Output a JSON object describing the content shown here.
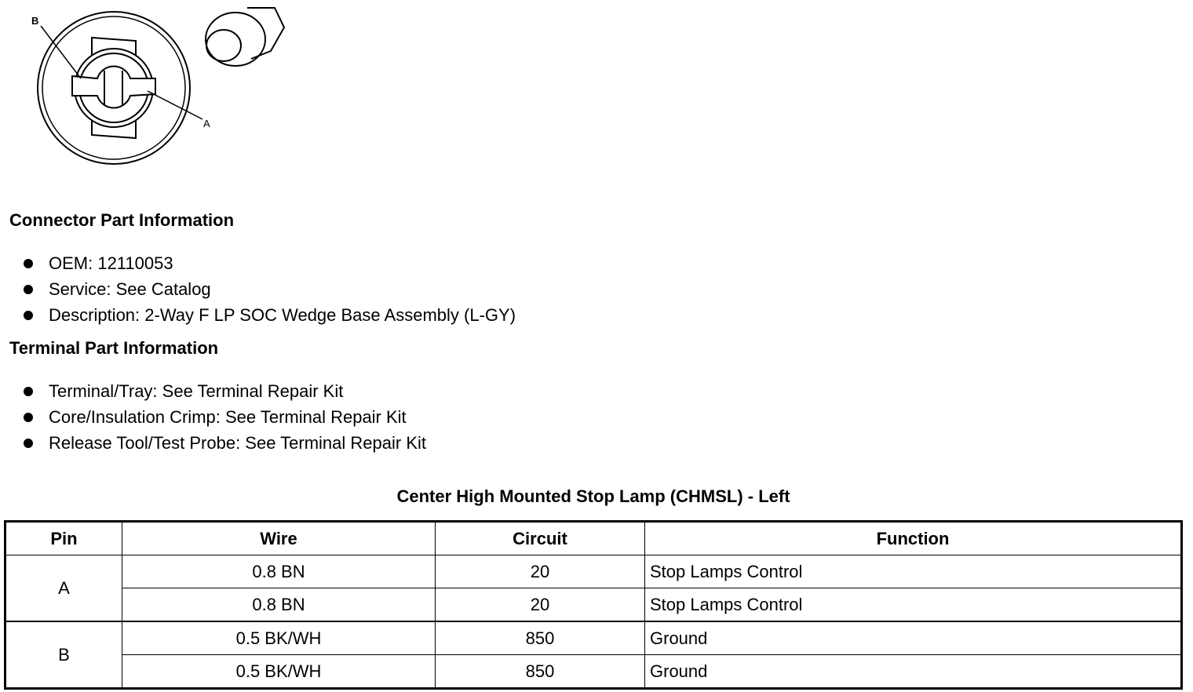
{
  "diagram": {
    "labels": [
      "A",
      "B"
    ]
  },
  "connector": {
    "heading": "Connector Part Information",
    "items": [
      "OEM: 12110053",
      "Service: See Catalog",
      "Description: 2-Way F LP SOC Wedge Base Assembly (L-GY)"
    ]
  },
  "terminal": {
    "heading": "Terminal Part Information",
    "items": [
      "Terminal/Tray: See Terminal Repair Kit",
      "Core/Insulation Crimp: See Terminal Repair Kit",
      "Release Tool/Test Probe: See Terminal Repair Kit"
    ]
  },
  "table": {
    "title": "Center High Mounted Stop Lamp (CHMSL) - Left",
    "headers": [
      "Pin",
      "Wire",
      "Circuit",
      "Function"
    ],
    "rows": [
      {
        "pin": "A",
        "wire": "0.8 BN",
        "circuit": "20",
        "function": "Stop Lamps Control"
      },
      {
        "pin": "A",
        "wire": "0.8 BN",
        "circuit": "20",
        "function": "Stop Lamps Control"
      },
      {
        "pin": "B",
        "wire": "0.5 BK/WH",
        "circuit": "850",
        "function": "Ground"
      },
      {
        "pin": "B",
        "wire": "0.5 BK/WH",
        "circuit": "850",
        "function": "Ground"
      }
    ]
  }
}
